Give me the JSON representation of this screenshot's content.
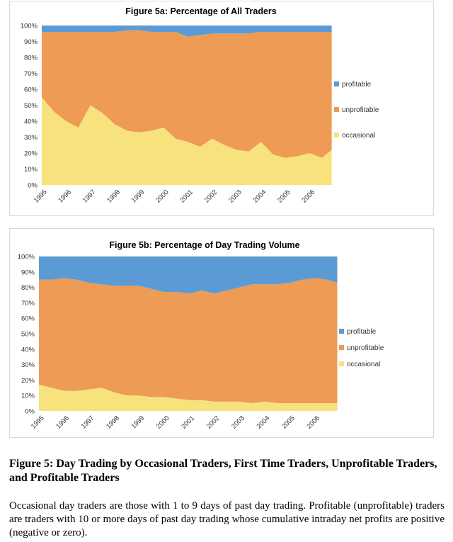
{
  "colors": {
    "profitable": "#5b9bd5",
    "unprofitable": "#ed9b55",
    "occasional": "#f8e27d"
  },
  "chart_data": [
    {
      "type": "area",
      "stacked": true,
      "title": "Figure 5a: Percentage of All Traders",
      "x": [
        1995.0,
        1995.5,
        1996.0,
        1996.5,
        1997.0,
        1997.5,
        1998.0,
        1998.5,
        1999.0,
        1999.5,
        2000.0,
        2000.5,
        2001.0,
        2001.5,
        2002.0,
        2002.5,
        2003.0,
        2003.5,
        2004.0,
        2004.5,
        2005.0,
        2005.5,
        2006.0,
        2006.5,
        2006.9
      ],
      "ylim": [
        0,
        100
      ],
      "yticks": [
        "0%",
        "10%",
        "20%",
        "30%",
        "40%",
        "50%",
        "60%",
        "70%",
        "80%",
        "90%",
        "100%"
      ],
      "xticks": [
        "1995",
        "1996",
        "1997",
        "1998",
        "1999",
        "2000",
        "2001",
        "2002",
        "2003",
        "2004",
        "2005",
        "2006"
      ],
      "legend": "right",
      "series": [
        {
          "name": "occasional",
          "values": [
            55,
            46,
            40,
            36,
            50,
            45,
            38,
            34,
            33,
            34,
            36,
            29,
            27,
            24,
            29,
            25,
            22,
            21,
            27,
            19,
            17,
            18,
            20,
            17,
            22
          ]
        },
        {
          "name": "unprofitable",
          "values": [
            41,
            50,
            56,
            60,
            46,
            51,
            58,
            63,
            64,
            62,
            60,
            67,
            66,
            70,
            66,
            70,
            73,
            74,
            69,
            77,
            79,
            78,
            76,
            79,
            74
          ]
        },
        {
          "name": "profitable",
          "values": [
            4,
            4,
            4,
            4,
            4,
            4,
            4,
            3,
            3,
            4,
            4,
            4,
            7,
            6,
            5,
            5,
            5,
            5,
            4,
            4,
            4,
            4,
            4,
            4,
            4
          ]
        }
      ]
    },
    {
      "type": "area",
      "stacked": true,
      "title": "Figure 5b: Percentage of Day Trading Volume",
      "x": [
        1995.0,
        1995.5,
        1996.0,
        1996.5,
        1997.0,
        1997.5,
        1998.0,
        1998.5,
        1999.0,
        1999.5,
        2000.0,
        2000.5,
        2001.0,
        2001.5,
        2002.0,
        2002.5,
        2003.0,
        2003.5,
        2004.0,
        2004.5,
        2005.0,
        2005.5,
        2006.0,
        2006.5,
        2006.9
      ],
      "ylim": [
        0,
        100
      ],
      "yticks": [
        "0%",
        "10%",
        "20%",
        "30%",
        "40%",
        "50%",
        "60%",
        "70%",
        "80%",
        "90%",
        "100%"
      ],
      "xticks": [
        "1995",
        "1996",
        "1997",
        "1998",
        "1999",
        "2000",
        "2001",
        "2002",
        "2003",
        "2004",
        "2005",
        "2006"
      ],
      "legend": "right",
      "series": [
        {
          "name": "occasional",
          "values": [
            17,
            15,
            13,
            13,
            14,
            15,
            12,
            10,
            10,
            9,
            9,
            8,
            7,
            7,
            6,
            6,
            6,
            5,
            6,
            5,
            5,
            5,
            5,
            5,
            5
          ]
        },
        {
          "name": "unprofitable",
          "values": [
            68,
            70,
            73,
            72,
            69,
            67,
            69,
            71,
            71,
            70,
            68,
            69,
            69,
            71,
            70,
            72,
            74,
            77,
            76,
            77,
            78,
            80,
            81,
            80,
            78
          ]
        },
        {
          "name": "profitable",
          "values": [
            15,
            15,
            14,
            15,
            17,
            18,
            19,
            19,
            19,
            21,
            23,
            23,
            24,
            22,
            24,
            22,
            20,
            18,
            18,
            18,
            17,
            15,
            14,
            15,
            17
          ]
        }
      ]
    }
  ],
  "caption": {
    "title": "Figure 5: Day Trading by Occasional Traders, First Time Traders, Unprofitable Traders, and Profitable Traders",
    "body": "Occasional day traders are those with 1 to 9 days of past day trading.  Profitable (unprofitable) traders are traders with 10 or more days of past day trading whose cumulative intraday net profits are positive (negative or zero)."
  }
}
